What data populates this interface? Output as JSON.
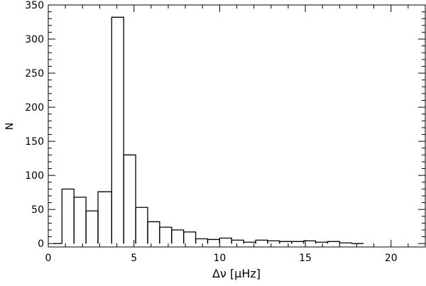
{
  "chart_data": {
    "type": "histogram",
    "title": "",
    "xlabel": "Δν [μHz]",
    "ylabel": "N",
    "xlim": [
      0,
      22
    ],
    "ylim": [
      -5,
      350
    ],
    "xticks": [
      0,
      5,
      10,
      15,
      20
    ],
    "yticks": [
      0,
      50,
      100,
      150,
      200,
      250,
      300,
      350
    ],
    "grid": false,
    "bin_edges": [
      0.3,
      0.8,
      1.5,
      2.2,
      2.9,
      3.7,
      4.4,
      5.1,
      5.8,
      6.5,
      7.2,
      7.9,
      8.6,
      9.3,
      10.0,
      10.7,
      11.4,
      12.1,
      12.8,
      13.5,
      14.2,
      14.9,
      15.6,
      16.3,
      17.0,
      17.7,
      18.4
    ],
    "counts": [
      0,
      80,
      68,
      48,
      76,
      332,
      130,
      53,
      32,
      24,
      20,
      17,
      7,
      6,
      8,
      5,
      2,
      5,
      4,
      3,
      3,
      4,
      2,
      3,
      1,
      0
    ],
    "series": [
      {
        "values": [
          0,
          80,
          68,
          48,
          76,
          332,
          130,
          53,
          32,
          24,
          20,
          17,
          7,
          6,
          8,
          5,
          2,
          5,
          4,
          3,
          3,
          4,
          2,
          3,
          1,
          0
        ]
      }
    ]
  }
}
